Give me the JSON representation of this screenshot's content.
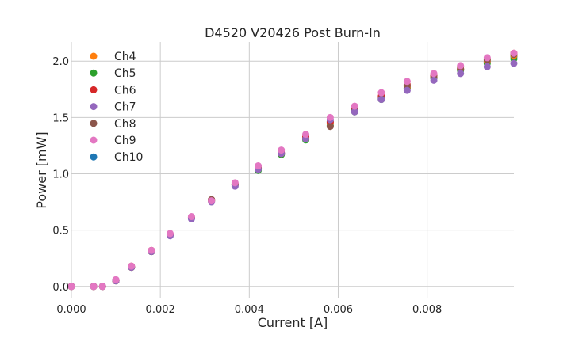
{
  "chart_data": {
    "type": "scatter",
    "title": "D4520 V20426 Post Burn-In",
    "xlabel": "Current [A]",
    "ylabel": "Power [mW]",
    "xlim": [
      0,
      0.00995
    ],
    "ylim": [
      -0.1,
      2.17
    ],
    "xticks": [
      0.0,
      0.002,
      0.004,
      0.006,
      0.008
    ],
    "xtick_labels": [
      "0.000",
      "0.002",
      "0.004",
      "0.006",
      "0.008"
    ],
    "yticks": [
      0.0,
      0.5,
      1.0,
      1.5,
      2.0
    ],
    "ytick_labels": [
      "0.0",
      "0.5",
      "1.0",
      "1.5",
      "2.0"
    ],
    "grid": true,
    "legend_position": "top-left",
    "x": [
      0.0,
      0.0005,
      0.0007,
      0.001,
      0.00135,
      0.0018,
      0.00222,
      0.0027,
      0.00315,
      0.00368,
      0.0042,
      0.00472,
      0.00527,
      0.00582,
      0.00637,
      0.00697,
      0.00755,
      0.00815,
      0.00875,
      0.00935,
      0.00995
    ],
    "series": [
      {
        "name": "Ch4",
        "color": "#ff7f0e",
        "values": [
          0.0,
          0.0,
          0.0,
          0.05,
          0.17,
          0.31,
          0.46,
          0.61,
          0.76,
          0.9,
          1.05,
          1.18,
          1.32,
          1.45,
          1.57,
          1.68,
          1.77,
          1.86,
          1.93,
          2.0,
          2.05
        ]
      },
      {
        "name": "Ch5",
        "color": "#2ca02c",
        "values": [
          0.0,
          0.0,
          0.0,
          0.05,
          0.17,
          0.31,
          0.46,
          0.61,
          0.76,
          0.9,
          1.03,
          1.17,
          1.3,
          1.43,
          1.55,
          1.66,
          1.76,
          1.85,
          1.92,
          1.98,
          2.02
        ]
      },
      {
        "name": "Ch6",
        "color": "#d62728",
        "values": [
          0.0,
          0.0,
          0.0,
          0.05,
          0.18,
          0.32,
          0.46,
          0.61,
          0.77,
          0.91,
          1.05,
          1.19,
          1.33,
          1.46,
          1.58,
          1.69,
          1.79,
          1.87,
          1.95,
          2.02,
          2.07
        ]
      },
      {
        "name": "Ch7",
        "color": "#9467bd",
        "values": [
          0.0,
          0.0,
          0.0,
          0.05,
          0.17,
          0.31,
          0.45,
          0.6,
          0.75,
          0.89,
          1.04,
          1.18,
          1.31,
          1.48,
          1.55,
          1.66,
          1.74,
          1.83,
          1.89,
          1.95,
          1.98
        ]
      },
      {
        "name": "Ch8",
        "color": "#8c564b",
        "values": [
          0.0,
          0.0,
          0.0,
          0.05,
          0.17,
          0.31,
          0.46,
          0.61,
          0.77,
          0.91,
          1.05,
          1.18,
          1.31,
          1.42,
          1.56,
          1.67,
          1.78,
          1.86,
          1.93,
          2.01,
          2.06
        ]
      },
      {
        "name": "Ch9",
        "color": "#e377c2",
        "values": [
          0.0,
          0.0,
          0.0,
          0.06,
          0.18,
          0.32,
          0.47,
          0.62,
          0.76,
          0.92,
          1.07,
          1.21,
          1.35,
          1.5,
          1.6,
          1.72,
          1.82,
          1.89,
          1.96,
          2.03,
          2.07
        ]
      },
      {
        "name": "Ch10",
        "color": "#1f77b4",
        "values": [
          0.0,
          0.0,
          0.0,
          0.05,
          0.17,
          0.31,
          0.46,
          0.61,
          0.76,
          0.9,
          1.05,
          1.18,
          1.32,
          1.46,
          1.56,
          1.67,
          1.76,
          1.85,
          1.92,
          1.99,
          2.04
        ]
      }
    ],
    "draw_order": [
      "Ch10",
      "Ch5",
      "Ch4",
      "Ch6",
      "Ch8",
      "Ch7",
      "Ch9"
    ]
  },
  "colors": {
    "background": "#ffffff",
    "grid": "#cccccc",
    "text": "#262626"
  }
}
